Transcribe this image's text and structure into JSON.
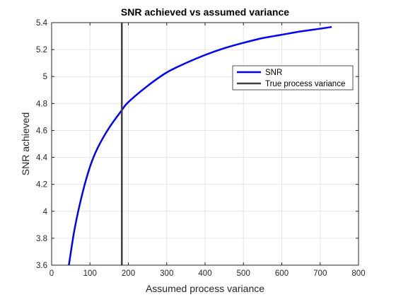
{
  "chart_data": {
    "type": "line",
    "title": "SNR achieved vs assumed variance",
    "xlabel": "Assumed process variance",
    "ylabel": "SNR achieved",
    "xlim": [
      0,
      800
    ],
    "ylim": [
      3.6,
      5.4
    ],
    "xticks": [
      0,
      100,
      200,
      300,
      400,
      500,
      600,
      700,
      800
    ],
    "yticks": [
      3.6,
      3.8,
      4.0,
      4.2,
      4.4,
      4.6,
      4.8,
      5.0,
      5.2,
      5.4
    ],
    "xtick_labels": [
      "0",
      "100",
      "200",
      "300",
      "400",
      "500",
      "600",
      "700",
      "800"
    ],
    "ytick_labels": [
      "3.6",
      "3.8",
      "4",
      "4.2",
      "4.4",
      "4.6",
      "4.8",
      "5",
      "5.2",
      "5.4"
    ],
    "grid": true,
    "legend_position": "top-right",
    "series": [
      {
        "name": "SNR",
        "color": "#0000ff",
        "x": [
          45,
          60,
          80,
          100,
          120,
          150,
          183,
          200,
          250,
          300,
          350,
          400,
          450,
          500,
          550,
          600,
          650,
          700,
          730
        ],
        "y": [
          3.6,
          3.87,
          4.13,
          4.33,
          4.47,
          4.62,
          4.75,
          4.81,
          4.93,
          5.03,
          5.1,
          5.16,
          5.21,
          5.25,
          5.285,
          5.31,
          5.335,
          5.355,
          5.368
        ]
      },
      {
        "name": "True process variance",
        "color": "#404040",
        "kind": "vertical",
        "x": [
          183,
          183
        ],
        "y": [
          3.6,
          5.4
        ]
      }
    ]
  }
}
